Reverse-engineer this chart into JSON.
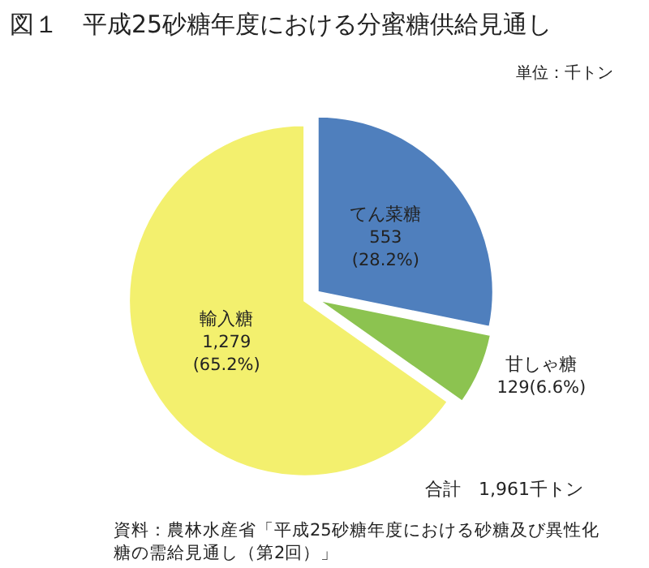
{
  "chart_data": {
    "type": "pie",
    "title": "図１　平成25砂糖年度における分蜜糖供給見通し",
    "categories": [
      "てん菜糖",
      "甘しゃ糖",
      "輸入糖"
    ],
    "values": [
      553,
      129,
      1279
    ],
    "value_labels": [
      "553 (28.2%)",
      "129(6.6%)",
      "1,279 (65.2%)"
    ],
    "colors": [
      "#4f7fbd",
      "#8cc350",
      "#f3f06e"
    ],
    "annotations": [
      "単位：千トン",
      "合計　1,961千トン",
      "資料：農林水産省「平成25砂糖年度における砂糖及び異性化糖の需給見通し（第2回）」"
    ]
  }
}
